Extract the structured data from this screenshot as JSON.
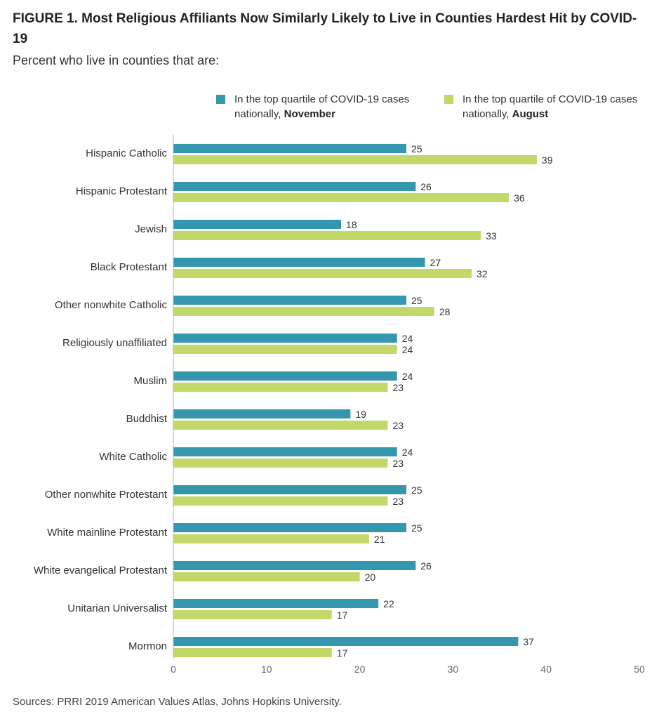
{
  "header": {
    "title": "FIGURE 1. Most Religious Affiliants Now Similarly Likely to Live in Counties Hardest Hit by COVID-19",
    "subtitle": "Percent who live in counties that are:"
  },
  "legend": [
    {
      "text": "In the top quartile of COVID-19 cases nationally, ",
      "bold": "November",
      "color": "#3597ad"
    },
    {
      "text": "In the top quartile of COVID-19 cases nationally, ",
      "bold": "August",
      "color": "#c2d96a"
    }
  ],
  "source": "Sources: PRRI 2019 American Values Atlas, Johns Hopkins University.",
  "chart_data": {
    "type": "bar",
    "orientation": "horizontal",
    "title": "FIGURE 1. Most Religious Affiliants Now Similarly Likely to Live in Counties Hardest Hit by COVID-19",
    "subtitle": "Percent who live in counties that are:",
    "categories": [
      "Hispanic Catholic",
      "Hispanic Protestant",
      "Jewish",
      "Black Protestant",
      "Other nonwhite Catholic",
      "Religiously unaffiliated",
      "Muslim",
      "Buddhist",
      "White Catholic",
      "Other nonwhite Protestant",
      "White mainline Protestant",
      "White evangelical Protestant",
      "Unitarian Universalist",
      "Mormon"
    ],
    "series": [
      {
        "name": "In the top quartile of COVID-19 cases nationally, November",
        "color": "#3597ad",
        "values": [
          25,
          26,
          18,
          27,
          25,
          24,
          24,
          19,
          24,
          25,
          25,
          26,
          22,
          37
        ]
      },
      {
        "name": "In the top quartile of COVID-19 cases nationally, August",
        "color": "#c2d96a",
        "values": [
          39,
          36,
          33,
          32,
          28,
          24,
          23,
          23,
          23,
          23,
          21,
          20,
          17,
          17
        ]
      }
    ],
    "xlim": [
      0,
      50
    ],
    "xticks": [
      0,
      10,
      20,
      30,
      40,
      50
    ],
    "grid": false,
    "legend_position": "top",
    "data_labels": true
  }
}
